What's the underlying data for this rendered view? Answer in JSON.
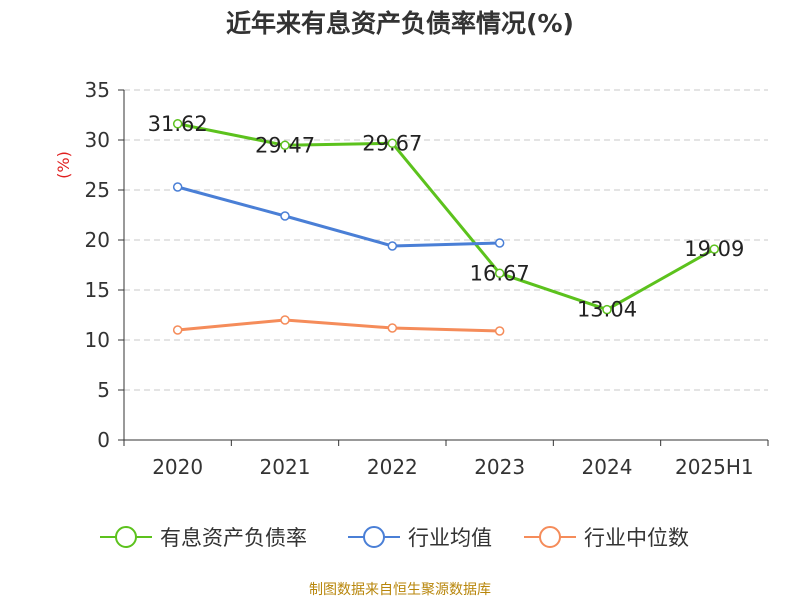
{
  "chart_data": {
    "type": "line",
    "title": "近年来有息资产负债率情况(%)",
    "ylabel": "(%)",
    "categories": [
      "2020",
      "2021",
      "2022",
      "2023",
      "2024",
      "2025H1"
    ],
    "yticks": [
      "0",
      "5",
      "10",
      "15",
      "20",
      "25",
      "30",
      "35"
    ],
    "ylim": [
      0,
      35
    ],
    "grid": true,
    "legend_position": "bottom",
    "series": [
      {
        "name": "有息资产负债率",
        "color": "#5cc21d",
        "values": [
          31.62,
          29.47,
          29.67,
          16.67,
          13.04,
          19.09
        ],
        "labels": [
          "31.62",
          "29.47",
          "29.67",
          "16.67",
          "13.04",
          "19.09"
        ]
      },
      {
        "name": "行业均值",
        "color": "#4a7fd6",
        "values": [
          25.3,
          22.4,
          19.4,
          19.7,
          null,
          null
        ]
      },
      {
        "name": "行业中位数",
        "color": "#f58c5a",
        "values": [
          11.0,
          12.0,
          11.2,
          10.9,
          null,
          null
        ]
      }
    ],
    "source": "制图数据来自恒生聚源数据库"
  }
}
